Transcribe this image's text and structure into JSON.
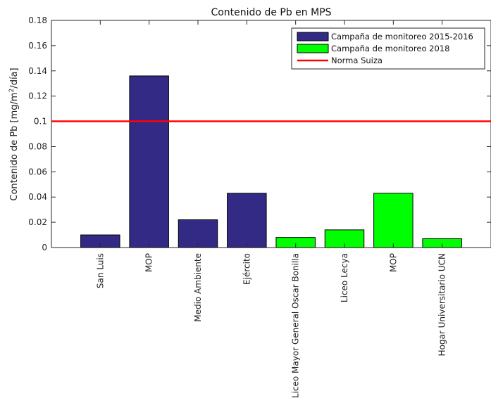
{
  "chart_data": {
    "type": "bar",
    "title": "Contenido de Pb en MPS",
    "xlabel": "",
    "ylabel_prefix": "Contenido de Pb [mg/m",
    "ylabel_sup": "2",
    "ylabel_suffix": "/día]",
    "ylim": [
      0,
      0.18
    ],
    "yticks": [
      0,
      0.02,
      0.04,
      0.06,
      0.08,
      0.1,
      0.12,
      0.14,
      0.16,
      0.18
    ],
    "ytick_labels": [
      "0",
      "0.02",
      "0.04",
      "0.06",
      "0.08",
      "0.1",
      "0.12",
      "0.14",
      "0.16",
      "0.18"
    ],
    "grid": false,
    "legend_position": "top-right",
    "categories": [
      "San Luis",
      "MOP",
      "Medio Ambiente",
      "Ejército",
      "Liceo Mayor General Oscar Bonilla",
      "Liceo Lecya",
      "MOP",
      "Hogar Universitario UCN"
    ],
    "values": [
      0.01,
      0.136,
      0.022,
      0.043,
      0.008,
      0.014,
      0.043,
      0.007
    ],
    "series": [
      {
        "name": "Campaña de monitoreo 2015-2016",
        "color": "#332a85",
        "indices": [
          0,
          1,
          2,
          3
        ]
      },
      {
        "name": "Campaña de monitoreo 2018",
        "color": "#00ff00",
        "indices": [
          4,
          5,
          6,
          7
        ]
      }
    ],
    "reference_line": {
      "name": "Norma Suiza",
      "value": 0.1,
      "color": "#ff0000"
    }
  }
}
